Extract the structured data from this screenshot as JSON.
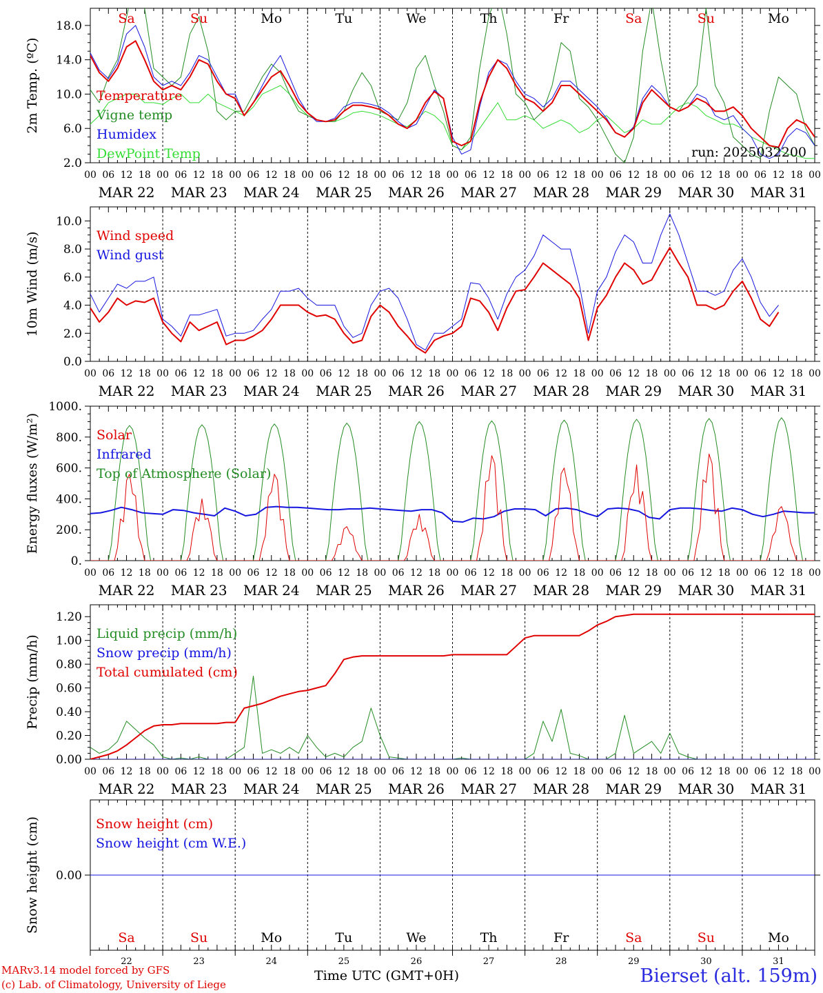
{
  "days": [
    "MAR 22",
    "MAR 23",
    "MAR 24",
    "MAR 25",
    "MAR 26",
    "MAR 27",
    "MAR 28",
    "MAR 29",
    "MAR 30",
    "MAR 31"
  ],
  "weekdays": [
    "Sa",
    "Su",
    "Mo",
    "Tu",
    "We",
    "Th",
    "Fr",
    "Sa",
    "Su",
    "Mo"
  ],
  "weekday_colors": [
    "#e00000",
    "#e00000",
    "#000000",
    "#000000",
    "#000000",
    "#000000",
    "#000000",
    "#e00000",
    "#e00000",
    "#000000"
  ],
  "day_numbers": [
    "22",
    "23",
    "24",
    "25",
    "26",
    "27",
    "28",
    "29",
    "30",
    "31"
  ],
  "hour_ticks": [
    "00",
    "06",
    "12",
    "18"
  ],
  "run_label": "run: 2025032200",
  "x_title": "Time UTC (GMT+0H)",
  "credits": [
    "MARv3.14 model forced by GFS",
    "(c) Lab. of Climatology, University of Liege"
  ],
  "station": "Bierset (alt. 159m)",
  "chart_data": [
    {
      "type": "line",
      "ylabel": "2m Temp. (ºC)",
      "ylim": [
        2,
        20
      ],
      "ytick_labels": [
        "2.0",
        "6.0",
        "10.0",
        "14.0",
        "18.0"
      ],
      "x": "hours since MAR 22 00 UTC, 3-hourly, 0..240",
      "series": [
        {
          "name": "Temperature",
          "color": "#e00000",
          "width": 2,
          "values": [
            14.5,
            12.5,
            11.5,
            13,
            15.5,
            16.2,
            14,
            11.5,
            10.5,
            11,
            10.5,
            12,
            14,
            13.5,
            11.5,
            10,
            9.5,
            7.5,
            9,
            10.5,
            12,
            12.7,
            11,
            9,
            7.8,
            7,
            6.8,
            7,
            8,
            8.7,
            8.7,
            8.5,
            8.2,
            7.5,
            6.5,
            6,
            7,
            9,
            10.3,
            9.5,
            4.5,
            4,
            4.5,
            9,
            12,
            14,
            13,
            11,
            9.5,
            9,
            8,
            9,
            11,
            11,
            10,
            9,
            8,
            7,
            5.5,
            5,
            6,
            9,
            10.5,
            9.5,
            8.5,
            8,
            8.5,
            9.5,
            9,
            8,
            8,
            8.5,
            7.5,
            6,
            5,
            4,
            3.8,
            6,
            7,
            6.5,
            5
          ]
        },
        {
          "name": "Vigne temp",
          "color": "#238c23",
          "width": 1,
          "values": [
            10.5,
            9,
            12,
            14,
            19,
            24,
            20,
            13,
            12,
            11,
            12,
            17,
            19,
            15,
            8,
            7,
            8,
            8,
            10,
            12,
            13.5,
            12.5,
            10,
            8,
            7.5,
            7,
            6.8,
            6.8,
            8,
            10.5,
            12.5,
            11,
            8,
            7.5,
            7,
            9,
            13,
            14.5,
            11,
            8,
            4,
            3.5,
            5,
            13,
            19,
            22,
            17,
            10,
            9,
            7,
            8,
            11,
            16,
            15,
            9.5,
            8.5,
            7,
            5,
            3,
            2,
            5,
            15,
            21,
            14,
            8.5,
            8,
            9.5,
            11,
            20,
            11,
            9,
            5,
            4,
            3,
            2.5,
            8,
            12,
            11,
            10,
            6,
            4
          ]
        },
        {
          "name": "Humidex",
          "color": "#1515e0",
          "width": 1,
          "values": [
            14.8,
            12.8,
            11.8,
            13.5,
            17,
            18,
            15.5,
            12,
            11,
            11.5,
            11,
            12.5,
            14.5,
            14,
            12,
            10,
            10,
            7.5,
            9,
            11,
            13,
            14.5,
            12,
            9.5,
            7.8,
            6.8,
            6.8,
            7.2,
            8.5,
            9,
            9,
            8.8,
            8.5,
            7.8,
            6.8,
            6,
            6.5,
            8.5,
            10.5,
            9.5,
            5,
            3,
            3.5,
            8.5,
            12.5,
            14,
            13.5,
            11.5,
            10,
            9.5,
            8.5,
            9.5,
            11.5,
            11.5,
            10.5,
            9.5,
            8.5,
            7.2,
            5.5,
            5,
            6.2,
            9.5,
            11,
            10,
            8.5,
            8,
            8.5,
            10,
            9.5,
            7.5,
            7,
            7.5,
            6,
            5,
            3,
            2.5,
            3,
            5,
            6,
            5.5,
            4
          ]
        },
        {
          "name": "DewPoint Temp",
          "color": "#33dd33",
          "width": 1,
          "values": [
            6.5,
            7.5,
            9,
            9.5,
            10,
            10,
            9,
            9,
            8.8,
            9.5,
            10,
            9,
            9,
            10,
            9,
            8.5,
            8,
            7.5,
            8.5,
            10,
            10.5,
            11,
            10,
            8.5,
            7.5,
            7,
            6.8,
            6.8,
            7.2,
            7.8,
            8,
            7.8,
            7.5,
            7,
            6.5,
            6.2,
            7,
            8,
            7.5,
            6.5,
            4,
            3.5,
            4.5,
            6,
            7.5,
            9,
            7,
            7,
            7.5,
            7,
            6,
            6.5,
            7,
            6.5,
            5.5,
            6,
            7,
            7.5,
            6.5,
            5.5,
            6,
            7,
            6.5,
            6.5,
            7.5,
            8.5,
            9,
            8.5,
            7.5,
            7,
            6.5,
            6.5,
            6,
            5,
            4.5,
            4,
            3.5,
            3,
            2.8,
            2.5,
            2.5
          ]
        }
      ]
    },
    {
      "type": "line",
      "ylabel": "10m Wind (m/s)",
      "ylim": [
        0,
        11
      ],
      "ytick_labels": [
        "0.0",
        "2.0",
        "4.0",
        "6.0",
        "8.0",
        "10.0"
      ],
      "reference_line": 5,
      "series": [
        {
          "name": "Wind speed",
          "color": "#e00000",
          "width": 2,
          "values": [
            3.8,
            2.8,
            3.5,
            4.5,
            4,
            4.3,
            4.2,
            4.5,
            2.8,
            2,
            1.4,
            2.8,
            2.2,
            2.5,
            2.8,
            1.2,
            1.5,
            1.5,
            1.8,
            2.2,
            3,
            4,
            4,
            4,
            3.5,
            3.2,
            3.3,
            3,
            2,
            1.3,
            1.5,
            3.2,
            4,
            3.5,
            2.5,
            1.8,
            1,
            0.6,
            1.5,
            1.8,
            2,
            2.5,
            4.5,
            4.3,
            3.5,
            2.2,
            3.8,
            5,
            5.1,
            6,
            7,
            6.5,
            6,
            5.5,
            4.5,
            1.5,
            3.8,
            4.7,
            6,
            7,
            6.5,
            5.5,
            5.8,
            7,
            8.1,
            7,
            6,
            4,
            4,
            3.7,
            4,
            5,
            5.7,
            4.5,
            3,
            2.5,
            3.5
          ]
        },
        {
          "name": "Wind gust",
          "color": "#1515e0",
          "width": 1,
          "values": [
            4.8,
            3.5,
            4.5,
            5.5,
            5.2,
            5.7,
            5.7,
            6,
            3,
            2.5,
            1.8,
            3.3,
            3.3,
            3.5,
            3.7,
            1.8,
            2,
            2,
            2.2,
            3,
            3.7,
            5,
            5,
            5.2,
            4.5,
            4,
            4,
            4,
            2.5,
            1.7,
            2,
            4,
            5,
            5.2,
            4.5,
            3,
            1.2,
            0.8,
            2,
            2,
            2.5,
            3,
            5.6,
            5.5,
            4.5,
            3,
            4.8,
            6,
            6.5,
            7.5,
            9,
            8.5,
            8,
            8,
            5.5,
            2,
            5,
            6,
            7.8,
            9,
            8.5,
            7,
            7,
            9,
            10.5,
            9,
            7,
            5,
            5,
            4.7,
            5,
            6.5,
            7.3,
            6,
            4.2,
            3.2,
            4
          ]
        }
      ]
    },
    {
      "type": "line",
      "ylabel": "Energy fluxes (W/m²)",
      "ylim": [
        0,
        1000
      ],
      "ytick_labels": [
        "0.",
        "200.",
        "400.",
        "600.",
        "800.",
        "1000."
      ],
      "series": [
        {
          "name": "Solar",
          "color": "#e00000",
          "width": 1,
          "peaks": [
            560,
            400,
            560,
            220,
            300,
            680,
            600,
            620,
            690,
            350
          ]
        },
        {
          "name": "Infrared",
          "color": "#1515e0",
          "width": 2,
          "values": [
            305,
            310,
            325,
            345,
            330,
            310,
            305,
            300,
            330,
            325,
            310,
            300,
            290,
            340,
            320,
            290,
            300,
            345,
            350,
            345,
            345,
            340,
            335,
            330,
            330,
            335,
            335,
            340,
            335,
            330,
            325,
            320,
            330,
            330,
            310,
            255,
            250,
            275,
            270,
            285,
            320,
            335,
            335,
            330,
            290,
            335,
            340,
            330,
            305,
            285,
            335,
            340,
            335,
            320,
            280,
            270,
            330,
            340,
            340,
            335,
            325,
            320,
            340,
            330,
            300,
            285,
            300,
            320,
            315,
            310,
            310
          ]
        },
        {
          "name": "Top of Atmosphere (Solar)",
          "color": "#238c23",
          "width": 1,
          "peaks": [
            875,
            880,
            885,
            890,
            900,
            905,
            910,
            915,
            920,
            925
          ]
        }
      ]
    },
    {
      "type": "line",
      "ylabel": "Precip (mm/h)",
      "ylim": [
        0,
        1.3
      ],
      "ytick_labels": [
        "0.00",
        "0.20",
        "0.40",
        "0.60",
        "0.80",
        "1.00",
        "1.20"
      ],
      "series": [
        {
          "name": "Liquid precip (mm/h)",
          "color": "#238c23",
          "width": 1,
          "values": [
            0.1,
            0.05,
            0.08,
            0.15,
            0.32,
            0.25,
            0.18,
            0.12,
            0.02,
            0,
            0.01,
            0,
            0.02,
            0,
            0,
            0,
            0.05,
            0.1,
            0.7,
            0.05,
            0.08,
            0.05,
            0.1,
            0.05,
            0.2,
            0.1,
            0.02,
            0.05,
            0.02,
            0.1,
            0.15,
            0.43,
            0.2,
            0.02,
            0.01,
            0,
            0,
            0,
            0,
            0,
            0,
            0.01,
            0,
            0,
            0,
            0,
            0,
            0,
            0,
            0.05,
            0.32,
            0.15,
            0.42,
            0.05,
            0.03,
            0,
            0,
            0,
            0.05,
            0.37,
            0.05,
            0.1,
            0.15,
            0.05,
            0.22,
            0.05,
            0.02,
            0,
            0,
            0,
            0,
            0,
            0,
            0,
            0,
            0,
            0
          ]
        },
        {
          "name": "Snow precip (mm/h)",
          "color": "#1515e0",
          "width": 1,
          "values": [
            0
          ]
        },
        {
          "name": "Total cumulated (cm)",
          "color": "#e00000",
          "width": 2,
          "values": [
            0,
            0.02,
            0.04,
            0.07,
            0.12,
            0.18,
            0.24,
            0.28,
            0.29,
            0.29,
            0.3,
            0.3,
            0.3,
            0.3,
            0.3,
            0.31,
            0.31,
            0.43,
            0.45,
            0.47,
            0.5,
            0.53,
            0.55,
            0.57,
            0.58,
            0.6,
            0.62,
            0.72,
            0.84,
            0.86,
            0.87,
            0.87,
            0.87,
            0.87,
            0.87,
            0.87,
            0.87,
            0.87,
            0.87,
            0.87,
            0.88,
            0.88,
            0.88,
            0.88,
            0.88,
            0.88,
            0.88,
            0.95,
            1.02,
            1.04,
            1.04,
            1.04,
            1.04,
            1.04,
            1.04,
            1.08,
            1.13,
            1.16,
            1.2,
            1.21,
            1.22,
            1.22,
            1.22,
            1.22,
            1.22,
            1.22,
            1.22,
            1.22,
            1.22,
            1.22,
            1.22,
            1.22,
            1.22,
            1.22,
            1.22,
            1.22,
            1.22,
            1.22,
            1.22,
            1.22,
            1.22
          ]
        }
      ]
    },
    {
      "type": "line",
      "ylabel": "Snow height (cm)",
      "ylim": [
        -0.6,
        0.6
      ],
      "ytick_labels": [
        "0.00"
      ],
      "series": [
        {
          "name": "Snow height (cm)",
          "color": "#e00000",
          "width": 1,
          "values": [
            0
          ]
        },
        {
          "name": "Snow height (cm W.E.)",
          "color": "#1515e0",
          "width": 1,
          "values": [
            0
          ]
        }
      ]
    }
  ]
}
